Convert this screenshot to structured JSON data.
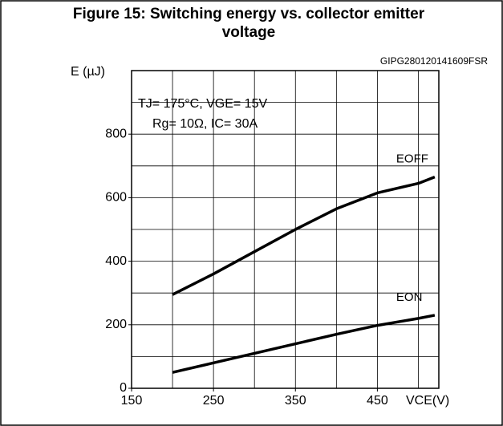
{
  "chart_data": {
    "type": "line",
    "title": "Figure 15: Switching energy vs. collector emitter voltage",
    "code": "GIPG280120141609FSR",
    "ylabel": "E (µJ)",
    "xlabel": "VCE(V)",
    "annotations": [
      "TJ= 175°C, VGE= 15V",
      "Rg= 10Ω, IC= 30A"
    ],
    "x": [
      200,
      250,
      300,
      350,
      400,
      450,
      500,
      520
    ],
    "series": [
      {
        "name": "EOFF",
        "color": "#000000",
        "values": [
          295,
          360,
          430,
          500,
          565,
          615,
          645,
          665
        ]
      },
      {
        "name": "EON",
        "color": "#000000",
        "values": [
          50,
          80,
          110,
          140,
          170,
          198,
          220,
          230
        ]
      }
    ],
    "xlim": [
      150,
      525
    ],
    "xticks": [
      150,
      250,
      350,
      450
    ],
    "ylim": [
      0,
      1000
    ],
    "yticks": [
      0,
      200,
      400,
      600,
      800
    ],
    "xgrid": [
      200,
      250,
      300,
      350,
      400,
      450,
      500
    ],
    "ygrid": [
      100,
      200,
      300,
      400,
      500,
      600,
      700,
      800,
      900
    ],
    "grid": true
  }
}
